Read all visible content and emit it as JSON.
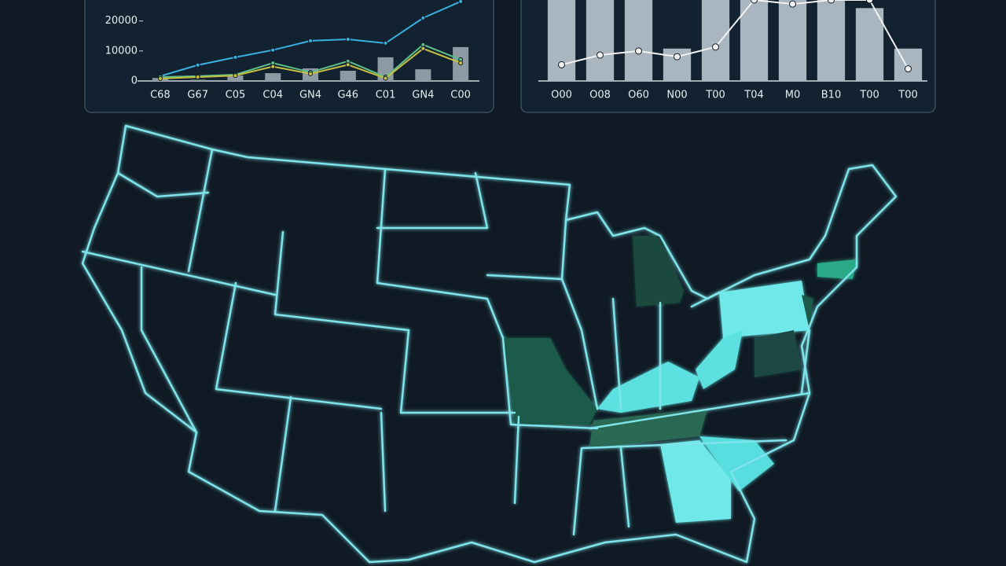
{
  "chart_data": [
    {
      "type": "combo",
      "categories": [
        "C68",
        "G67",
        "C05",
        "C04",
        "GN4",
        "G46",
        "C01",
        "GN4",
        "C00"
      ],
      "ylim": [
        0,
        27000
      ],
      "yticks": [
        0,
        10000,
        20000
      ],
      "series": [
        {
          "mark": "bar",
          "color": "#8d9aa3",
          "values": [
            1000,
            400,
            1800,
            2600,
            4200,
            3400,
            7900,
            3900,
            11300
          ]
        },
        {
          "mark": "line",
          "color": "#3ab0e0",
          "values": [
            1600,
            5300,
            7900,
            10300,
            13400,
            13900,
            12600,
            21000,
            26500
          ]
        },
        {
          "mark": "line",
          "color": "#5cc08a",
          "values": [
            1300,
            1600,
            2100,
            6000,
            2900,
            6600,
            1300,
            12100,
            7100
          ]
        },
        {
          "mark": "line",
          "color": "#c8c040",
          "values": [
            800,
            1300,
            1800,
            4800,
            2400,
            5400,
            900,
            10800,
            6000
          ]
        }
      ]
    },
    {
      "type": "combo",
      "categories": [
        "O00",
        "O08",
        "O60",
        "N00",
        "T00",
        "T04",
        "M0",
        "B10",
        "T00",
        "T00"
      ],
      "ylim": [
        0,
        100
      ],
      "series": [
        {
          "mark": "bar",
          "color": "#a9b6bf",
          "values": [
            100,
            100,
            100,
            40,
            100,
            100,
            100,
            100,
            90,
            40
          ]
        },
        {
          "mark": "line",
          "color": "#f2f2f2",
          "values": [
            20,
            32,
            37,
            30,
            42,
            100,
            95,
            100,
            100,
            15
          ]
        }
      ]
    }
  ]
}
